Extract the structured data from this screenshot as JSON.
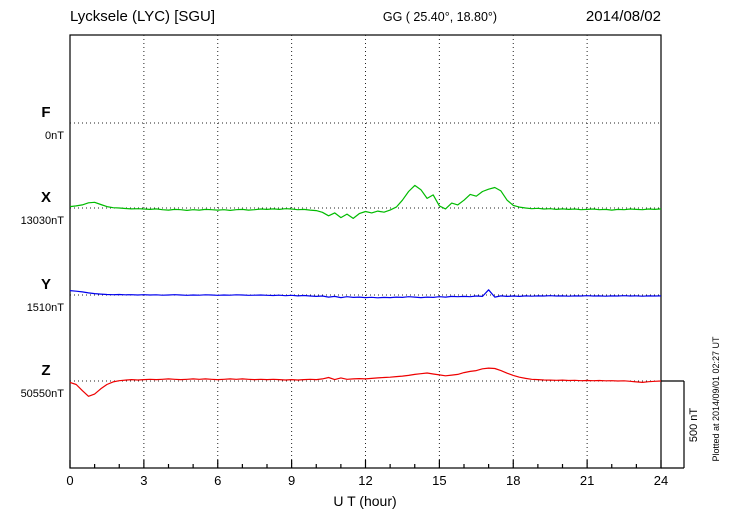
{
  "chart_data": {
    "type": "line",
    "title": "Lycksele (LYC)  [SGU]",
    "xlabel": "U T (hour)",
    "xlim": [
      0,
      24
    ],
    "x_ticks": [
      0,
      3,
      6,
      9,
      12,
      15,
      18,
      21,
      24
    ],
    "x_start": 0,
    "x_step_hours": 0.25,
    "grid": "dotted",
    "scale_bar": {
      "label": "500 nT",
      "nT": 500
    },
    "annotations": {
      "coords": "GG ( 25.40°,  18.80°)",
      "date": "2014/08/02",
      "plotted_at": "Plotted at 2014/09/01 02:27 UT"
    },
    "series": [
      {
        "name": "F",
        "baseline_label": "0nT",
        "color": "#FFA500",
        "values_nT": []
      },
      {
        "name": "X",
        "baseline_label": "13030nT",
        "color": "#00BB00",
        "values_nT": [
          8,
          12,
          18,
          30,
          33,
          20,
          8,
          2,
          0,
          -3,
          -5,
          -4,
          -6,
          -8,
          -5,
          -10,
          -12,
          -8,
          -10,
          -14,
          -10,
          -12,
          -8,
          -10,
          -12,
          -10,
          -14,
          -10,
          -8,
          -12,
          -10,
          -6,
          -8,
          -5,
          -8,
          -4,
          -6,
          -10,
          -8,
          -12,
          -15,
          -25,
          -45,
          -28,
          -55,
          -35,
          -60,
          -32,
          -20,
          -28,
          -18,
          -24,
          -12,
          5,
          45,
          95,
          130,
          105,
          55,
          75,
          12,
          -5,
          28,
          18,
          45,
          78,
          68,
          95,
          108,
          118,
          98,
          45,
          15,
          5,
          0,
          -4,
          -2,
          -6,
          -4,
          -8,
          -5,
          -8,
          -6,
          -10,
          -8,
          -6,
          -10,
          -8,
          -12,
          -8,
          -10,
          -6,
          -8,
          -10,
          -6,
          -8,
          -5
        ]
      },
      {
        "name": "Y",
        "baseline_label": "1510nT",
        "color": "#0000EE",
        "values_nT": [
          25,
          22,
          18,
          12,
          8,
          5,
          3,
          2,
          3,
          1,
          2,
          0,
          2,
          0,
          1,
          -1,
          0,
          2,
          0,
          -2,
          0,
          -1,
          1,
          0,
          -2,
          0,
          -1,
          1,
          0,
          -2,
          -1,
          0,
          -2,
          -3,
          -1,
          -4,
          -2,
          -5,
          -3,
          -6,
          -8,
          -6,
          -12,
          -8,
          -15,
          -10,
          -14,
          -12,
          -15,
          -13,
          -16,
          -14,
          -15,
          -12,
          -14,
          -10,
          -12,
          -15,
          -12,
          -14,
          -10,
          -12,
          -8,
          -10,
          -8,
          -10,
          -6,
          -8,
          30,
          -12,
          -5,
          -8,
          -6,
          -8,
          -5,
          -7,
          -5,
          -6,
          -4,
          -6,
          -5,
          -7,
          -5,
          -6,
          -4,
          -6,
          -5,
          -7,
          -5,
          -6,
          -4,
          -6,
          -5,
          -7,
          -5,
          -6,
          -5
        ]
      },
      {
        "name": "Z",
        "baseline_label": "50550nT",
        "color": "#EE0000",
        "values_nT": [
          -8,
          -20,
          -55,
          -88,
          -75,
          -45,
          -20,
          -5,
          2,
          5,
          8,
          6,
          8,
          10,
          8,
          10,
          12,
          10,
          8,
          10,
          12,
          10,
          12,
          10,
          8,
          10,
          12,
          10,
          12,
          10,
          8,
          10,
          8,
          10,
          8,
          6,
          8,
          6,
          8,
          10,
          8,
          12,
          20,
          8,
          18,
          10,
          12,
          14,
          12,
          15,
          18,
          20,
          22,
          25,
          28,
          32,
          38,
          42,
          46,
          40,
          35,
          30,
          34,
          38,
          48,
          55,
          60,
          70,
          74,
          72,
          60,
          45,
          32,
          22,
          15,
          10,
          8,
          6,
          5,
          4,
          5,
          3,
          4,
          2,
          3,
          2,
          3,
          1,
          2,
          0,
          1,
          -2,
          -5,
          -8,
          -4,
          -2,
          0
        ]
      }
    ]
  }
}
